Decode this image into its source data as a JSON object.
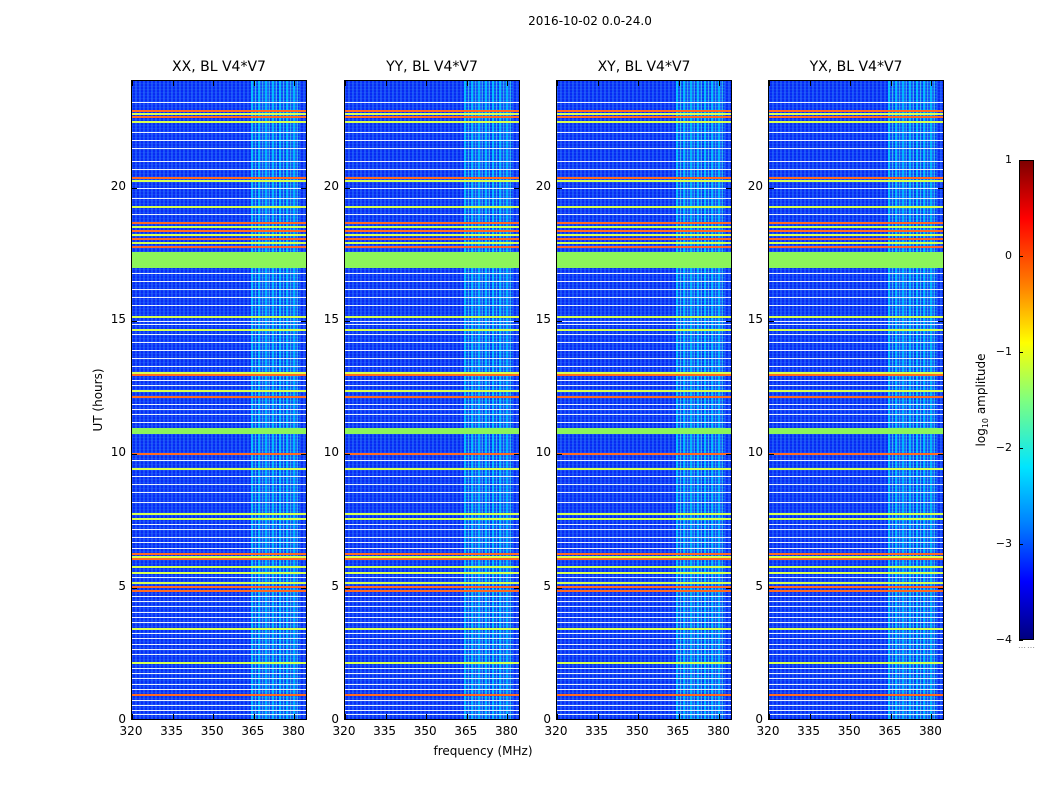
{
  "chart_data": {
    "type": "heatmap",
    "title": "2016-10-02 0.0-24.0",
    "xlabel": "frequency (MHz)",
    "ylabel": "UT (hours)",
    "xlim": [
      320,
      385
    ],
    "ylim": [
      0,
      24
    ],
    "xticks": [
      "320",
      "335",
      "350",
      "365",
      "380"
    ],
    "xtick_values": [
      320,
      335,
      350,
      365,
      380
    ],
    "yticks": [
      "0",
      "5",
      "10",
      "15",
      "20"
    ],
    "ytick_values": [
      0,
      5,
      10,
      15,
      20
    ],
    "panels": [
      {
        "title": "XX, BL V4*V7"
      },
      {
        "title": "YY, BL V4*V7"
      },
      {
        "title": "XY, BL V4*V7"
      },
      {
        "title": "YX, BL V4*V7"
      }
    ],
    "colorbar": {
      "label": "log10 amplitude",
      "label_base": "log",
      "label_sub": "10",
      "label_rest": " amplitude",
      "range": [
        -4,
        1
      ],
      "ticks": [
        "1",
        "0",
        "−1",
        "−2",
        "−3",
        "−4"
      ],
      "tick_values": [
        1,
        0,
        -1,
        -2,
        -3,
        -4
      ]
    },
    "rfi_band_mhz": [
      364,
      382
    ],
    "flagged_hours": [
      [
        17.0,
        17.6
      ],
      [
        10.75,
        11.0
      ]
    ],
    "red_lines_hours": [
      22.9,
      22.7,
      20.4,
      18.7,
      18.4,
      18.1,
      17.8,
      13.0,
      12.2,
      10.05,
      6.3,
      6.1,
      5.05,
      4.9,
      1.0
    ],
    "yellow_lines_hours": [
      22.8,
      22.5,
      20.3,
      19.3,
      18.55,
      18.25,
      17.95,
      15.2,
      14.7,
      13.1,
      12.4,
      9.5,
      7.8,
      7.6,
      6.2,
      5.8,
      5.6,
      5.2,
      3.5,
      2.2,
      0.05
    ],
    "white_lines_hours": [
      23.2,
      22.1,
      21.8,
      21.5,
      21.0,
      20.7,
      20.0,
      19.6,
      19.0,
      16.8,
      16.5,
      16.2,
      15.9,
      15.6,
      15.0,
      14.9,
      14.5,
      14.2,
      13.9,
      13.6,
      13.3,
      12.8,
      12.6,
      11.9,
      11.7,
      11.5,
      11.2,
      9.8,
      9.2,
      8.9,
      8.6,
      8.2,
      7.4,
      7.2,
      6.9,
      6.7,
      6.5,
      5.4,
      4.7,
      4.5,
      4.3,
      4.1,
      3.9,
      3.7,
      3.3,
      3.1,
      2.9,
      2.7,
      2.5,
      2.0,
      1.8,
      1.6,
      1.4,
      1.2,
      0.8,
      0.6,
      0.4,
      0.25
    ]
  }
}
